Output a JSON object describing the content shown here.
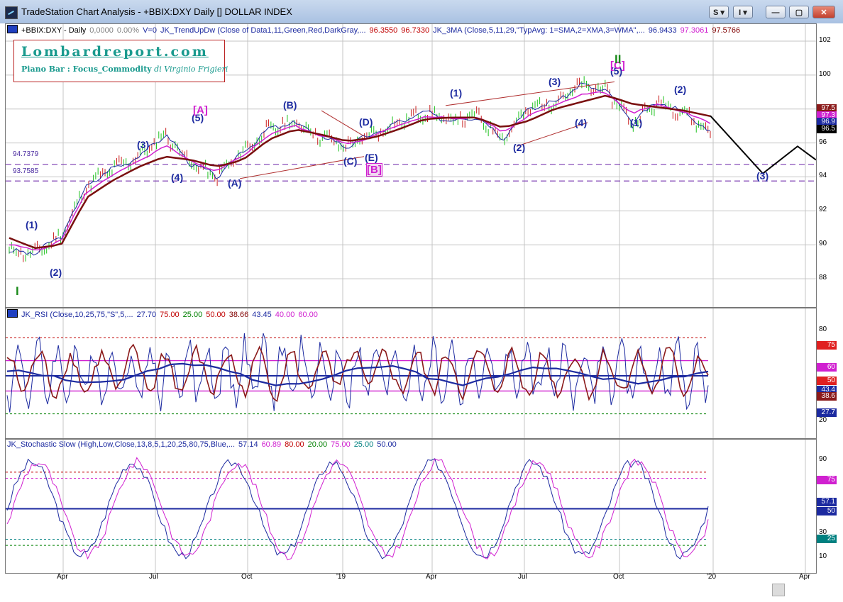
{
  "window": {
    "title": "TradeStation Chart Analysis - +BBIX:DXY Daily [] DOLLAR INDEX",
    "btn_s": "S",
    "btn_i": "I",
    "btn_min": "—",
    "btn_max": "▢",
    "btn_close": "✕"
  },
  "logo": {
    "title": "Lombardreport.com",
    "subtitle": "Piano Bar : Focus_Commodity",
    "author": "di Virginio Frigieri"
  },
  "price_pane": {
    "header": [
      {
        "text": "+BBIX:DXY - Daily",
        "color": "#000000"
      },
      {
        "text": "0,0000",
        "color": "#808080"
      },
      {
        "text": "0.00%",
        "color": "#808080"
      },
      {
        "text": "V=0",
        "color": "#1c2aa0"
      },
      {
        "text": "JK_TrendUpDw (Close of Data1,11,Green,Red,DarkGray,...",
        "color": "#1c2aa0"
      },
      {
        "text": "96.3550",
        "color": "#c00000"
      },
      {
        "text": "96.7330",
        "color": "#c00000"
      },
      {
        "text": "JK_3MA (Close,5,11,29,\"TypAvg: 1=SMA,2=XMA,3=WMA\",...",
        "color": "#1c2aa0"
      },
      {
        "text": "96.9433",
        "color": "#1c2aa0"
      },
      {
        "text": "97.3061",
        "color": "#d020d0"
      },
      {
        "text": "97.5766",
        "color": "#800000"
      }
    ],
    "y_ticks": [
      "102",
      "100",
      "98",
      "96",
      "94",
      "92",
      "90",
      "88"
    ],
    "level_1": "94.7379",
    "level_2": "93.7585",
    "tags": [
      {
        "text": "97.5",
        "bg": "#8b1a1a"
      },
      {
        "text": "97.3",
        "bg": "#d020d0"
      },
      {
        "text": "96.9",
        "bg": "#1c2aa0"
      },
      {
        "text": "96.5",
        "bg": "#000000"
      }
    ],
    "wave_labels": [
      {
        "text": "(1)",
        "kind": "blue"
      },
      {
        "text": "(2)",
        "kind": "blue"
      },
      {
        "text": "(3)",
        "kind": "blue"
      },
      {
        "text": "(4)",
        "kind": "blue"
      },
      {
        "text": "(5)",
        "kind": "blue"
      },
      {
        "text": "(A)",
        "kind": "blue"
      },
      {
        "text": "(B)",
        "kind": "blue"
      },
      {
        "text": "(C)",
        "kind": "blue"
      },
      {
        "text": "(D)",
        "kind": "blue"
      },
      {
        "text": "(E)",
        "kind": "blue"
      },
      {
        "text": "(1)",
        "kind": "blue"
      },
      {
        "text": "(3)",
        "kind": "blue"
      },
      {
        "text": "(2)",
        "kind": "blue"
      },
      {
        "text": "(4)",
        "kind": "blue"
      },
      {
        "text": "(5)",
        "kind": "blue"
      },
      {
        "text": "(1)",
        "kind": "blue"
      },
      {
        "text": "(2)",
        "kind": "blue"
      },
      {
        "text": "(3)",
        "kind": "blue"
      },
      {
        "text": "[A]",
        "kind": "magenta"
      },
      {
        "text": "[B]",
        "kind": "magenta"
      },
      {
        "text": "[C]",
        "kind": "magenta"
      },
      {
        "text": "I",
        "kind": "green"
      },
      {
        "text": "II",
        "kind": "green"
      }
    ]
  },
  "rsi_pane": {
    "header": [
      {
        "text": "JK_RSI (Close,10,25,75,\"S\",5,...",
        "color": "#1c2aa0"
      },
      {
        "text": "27.70",
        "color": "#1c2aa0"
      },
      {
        "text": "75.00",
        "color": "#c00000"
      },
      {
        "text": "25.00",
        "color": "#008000"
      },
      {
        "text": "50.00",
        "color": "#c00000"
      },
      {
        "text": "38.66",
        "color": "#800000"
      },
      {
        "text": "43.45",
        "color": "#1c2aa0"
      },
      {
        "text": "40.00",
        "color": "#d020d0"
      },
      {
        "text": "60.00",
        "color": "#d020d0"
      }
    ],
    "y_ticks": [
      "80",
      "20"
    ],
    "tags": [
      {
        "text": "75",
        "bg": "#e02020"
      },
      {
        "text": "60",
        "bg": "#d020d0"
      },
      {
        "text": "50",
        "bg": "#e02020"
      },
      {
        "text": "43.4",
        "bg": "#1c2aa0"
      },
      {
        "text": "38.6",
        "bg": "#8b1a1a"
      },
      {
        "text": "27.7",
        "bg": "#1c2aa0"
      }
    ]
  },
  "stoch_pane": {
    "header": [
      {
        "text": "JK_Stochastic Slow (High,Low,Close,13,8,5,1,20,25,80,75,Blue,...",
        "color": "#1c2aa0"
      },
      {
        "text": "57.14",
        "color": "#1c2aa0"
      },
      {
        "text": "60.89",
        "color": "#d020d0"
      },
      {
        "text": "80.00",
        "color": "#c00000"
      },
      {
        "text": "20.00",
        "color": "#008000"
      },
      {
        "text": "75.00",
        "color": "#d020d0"
      },
      {
        "text": "25.00",
        "color": "#008080"
      },
      {
        "text": "50.00",
        "color": "#1c2aa0"
      }
    ],
    "y_ticks": [
      "90",
      "30",
      "10"
    ],
    "tags": [
      {
        "text": "75",
        "bg": "#d020d0"
      },
      {
        "text": "57.1",
        "bg": "#1c2aa0"
      },
      {
        "text": "50",
        "bg": "#1c2aa0"
      },
      {
        "text": "25",
        "bg": "#008080"
      }
    ]
  },
  "x_axis": [
    "Apr",
    "Jul",
    "Oct",
    "'19",
    "Apr",
    "Jul",
    "Oct",
    "'20",
    "Apr"
  ],
  "chart_data": {
    "type": "line",
    "title": "DOLLAR INDEX",
    "series": [
      {
        "name": "+BBIX:DXY",
        "values": [
          89.6,
          89.5,
          90.5,
          93.5,
          94.5,
          95.2,
          96.5,
          94.8,
          94.0,
          95.5,
          96.8,
          97.2,
          96.4,
          95.8,
          96.5,
          97.2,
          97.8,
          97.3,
          97.6,
          96.3,
          98.0,
          98.4,
          99.4,
          99.1,
          97.2,
          98.4,
          97.8,
          96.6
        ]
      },
      {
        "name": "JK_3MA",
        "values": [
          90.4,
          89.8,
          90.0,
          92.8,
          93.8,
          94.6,
          95.2,
          95.0,
          94.6,
          95.0,
          96.2,
          96.8,
          96.5,
          96.1,
          96.3,
          96.8,
          97.4,
          97.5,
          97.5,
          96.9,
          97.3,
          98.0,
          98.4,
          98.8,
          98.3,
          98.1,
          97.9,
          97.58
        ]
      }
    ],
    "projection": [
      97.6,
      94.2,
      95.8,
      95.0
    ],
    "levels": [
      94.7379,
      93.7585
    ],
    "ylim": [
      87,
      102.5
    ]
  }
}
